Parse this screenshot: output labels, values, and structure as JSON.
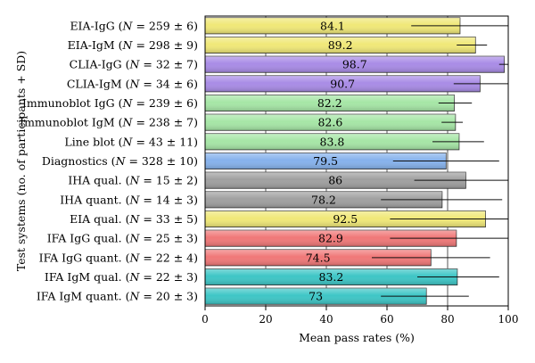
{
  "chart_data": {
    "type": "bar",
    "orientation": "horizontal",
    "xlabel": "Mean pass rates (%)",
    "ylabel": "Test systems (no. of participants + SD)",
    "xlim": [
      0,
      100
    ],
    "xticks": [
      "0",
      "20",
      "40",
      "60",
      "80",
      "100"
    ],
    "grid": "vertical",
    "categories": [
      {
        "name": "EIA-IgG",
        "n": "259 ± 6"
      },
      {
        "name": "EIA-IgM",
        "n": "298 ± 9"
      },
      {
        "name": "CLIA-IgG",
        "n": "32 ± 7"
      },
      {
        "name": "CLIA-IgM",
        "n": "34 ± 6"
      },
      {
        "name": "Immunoblot IgG",
        "n": "239 ± 6"
      },
      {
        "name": "Immunoblot IgM",
        "n": "238 ± 7"
      },
      {
        "name": "Line  blot",
        "n": "43 ± 11"
      },
      {
        "name": "Diagnostics",
        "n": "328 ± 10"
      },
      {
        "name": "IHA qual.",
        "n": "15 ± 2"
      },
      {
        "name": "IHA quant.",
        "n": "14 ± 3"
      },
      {
        "name": "EIA qual.",
        "n": "33 ± 5"
      },
      {
        "name": "IFA IgG qual.",
        "n": "25 ± 3"
      },
      {
        "name": "IFA IgG quant.",
        "n": "22 ± 4"
      },
      {
        "name": "IFA IgM qual.",
        "n": "22 ± 3"
      },
      {
        "name": "IFA IgM quant.",
        "n": "20 ± 3"
      }
    ],
    "values": [
      84.1,
      89.2,
      98.7,
      90.7,
      82.2,
      82.6,
      83.8,
      79.5,
      86,
      78.2,
      92.5,
      82.9,
      74.5,
      83.2,
      73
    ],
    "value_labels": [
      "84.1",
      "89.2",
      "98.7",
      "90.7",
      "82.2",
      "82.6",
      "83.8",
      "79.5",
      "86",
      "78.2",
      "92.5",
      "82.9",
      "74.5",
      "83.2",
      "73"
    ],
    "error_low": [
      68,
      83,
      97,
      82,
      77,
      78,
      75,
      62,
      69,
      58,
      61,
      61,
      55,
      70,
      58
    ],
    "error_high": [
      100,
      93,
      100,
      100,
      88,
      85,
      92,
      97,
      100,
      98,
      100,
      100,
      94,
      97,
      87
    ],
    "colors": [
      "#f0e878",
      "#f0e878",
      "#a98ce6",
      "#a98ce6",
      "#a6e6a6",
      "#a6e6a6",
      "#a6e6a6",
      "#86b2ec",
      "#a0a0a0",
      "#a0a0a0",
      "#f0e878",
      "#f07878",
      "#f07878",
      "#3ec6c6",
      "#3ec6c6"
    ],
    "n_prefix": "N",
    "equals_sign": "="
  }
}
